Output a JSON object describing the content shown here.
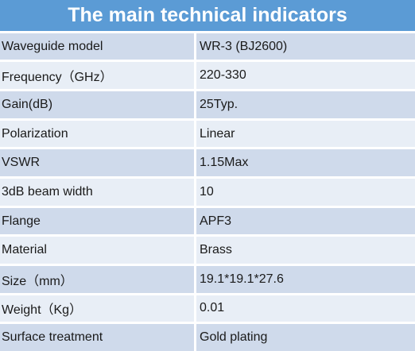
{
  "table": {
    "title": "The main technical indicators",
    "rows": [
      {
        "label": "Waveguide model",
        "value": "WR-3 (BJ2600)"
      },
      {
        "label": "Frequency（GHz）",
        "value": "220-330"
      },
      {
        "label": "Gain(dB)",
        "value": "25Typ."
      },
      {
        "label": "Polarization",
        "value": "Linear"
      },
      {
        "label": "VSWR",
        "value": "1.15Max"
      },
      {
        "label": "3dB beam width",
        "value": "10"
      },
      {
        "label": "Flange",
        "value": "APF3"
      },
      {
        "label": "Material",
        "value": "Brass"
      },
      {
        "label": "Size（mm）",
        "value": "19.1*19.1*27.6"
      },
      {
        "label": "Weight（Kg）",
        "value": "0.01"
      },
      {
        "label": "Surface treatment",
        "value": "Gold plating"
      }
    ]
  },
  "colors": {
    "header_background": "#5b9bd5",
    "row_odd_background": "#cfdaeb",
    "row_even_background": "#e8eef6"
  }
}
